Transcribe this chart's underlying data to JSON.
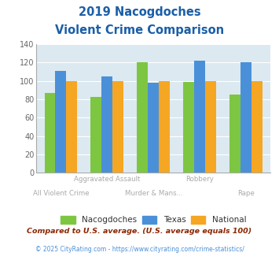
{
  "title_line1": "2019 Nacogdoches",
  "title_line2": "Violent Crime Comparison",
  "nacogdoches": [
    87,
    83,
    120,
    99,
    85
  ],
  "texas": [
    111,
    105,
    98,
    122,
    120
  ],
  "national": [
    100,
    100,
    100,
    100,
    100
  ],
  "bar_colors": {
    "nacogdoches": "#7dc642",
    "texas": "#4a90d9",
    "national": "#f5a623"
  },
  "ylim": [
    0,
    140
  ],
  "yticks": [
    0,
    20,
    40,
    60,
    80,
    100,
    120,
    140
  ],
  "legend_labels": [
    "Nacogdoches",
    "Texas",
    "National"
  ],
  "footnote1": "Compared to U.S. average. (U.S. average equals 100)",
  "footnote2": "© 2025 CityRating.com - https://www.cityrating.com/crime-statistics/",
  "bg_color": "#dce9f0",
  "title_color": "#1a5fa8",
  "footnote1_color": "#8b2500",
  "footnote2_color": "#4a90d9",
  "label_color": "#aaaaaa",
  "x_label_top": [
    "",
    "Aggravated Assault",
    "",
    "Robbery",
    ""
  ],
  "x_label_bot": [
    "All Violent Crime",
    "",
    "Murder & Mans...",
    "",
    "Rape"
  ]
}
